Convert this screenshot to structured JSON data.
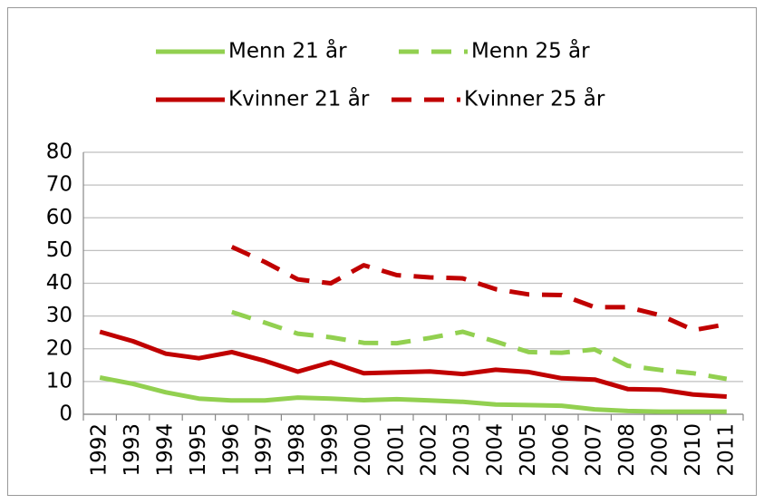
{
  "chart_data": {
    "type": "line",
    "categories": [
      "1992",
      "1993",
      "1994",
      "1995",
      "1996",
      "1997",
      "1998",
      "1999",
      "2000",
      "2001",
      "2002",
      "2003",
      "2004",
      "2005",
      "2006",
      "2007",
      "2008",
      "2009",
      "2010",
      "2011"
    ],
    "series": [
      {
        "name": "Menn 21 år",
        "color": "#92d050",
        "style": "solid",
        "values": [
          11.2,
          9.3,
          6.7,
          4.8,
          4.2,
          4.2,
          5.1,
          4.8,
          4.3,
          4.6,
          4.2,
          3.8,
          3.0,
          2.8,
          2.6,
          1.5,
          1.0,
          0.8,
          0.8,
          0.8
        ]
      },
      {
        "name": "Menn 25 år",
        "color": "#92d050",
        "style": "dashed",
        "values": [
          null,
          null,
          null,
          null,
          31.2,
          28.0,
          24.6,
          23.5,
          21.8,
          21.7,
          23.3,
          25.2,
          22.2,
          19.0,
          18.8,
          19.8,
          14.8,
          13.5,
          12.5,
          10.8
        ]
      },
      {
        "name": "Kvinner 21 år",
        "color": "#c00000",
        "style": "solid",
        "values": [
          25.2,
          22.3,
          18.5,
          17.1,
          19.0,
          16.3,
          13.0,
          15.9,
          12.5,
          12.8,
          13.1,
          12.3,
          13.6,
          12.9,
          11.0,
          10.6,
          7.7,
          7.5,
          6.0,
          5.4
        ]
      },
      {
        "name": "Kvinner 25 år",
        "color": "#c00000",
        "style": "dashed",
        "values": [
          null,
          null,
          null,
          null,
          51.1,
          46.5,
          41.2,
          40.0,
          45.5,
          42.5,
          41.8,
          41.5,
          38.2,
          36.6,
          36.4,
          32.7,
          32.7,
          30.2,
          25.7,
          27.5
        ]
      }
    ],
    "ylim": [
      0,
      80
    ],
    "yticks": [
      0,
      10,
      20,
      30,
      40,
      50,
      60,
      70,
      80
    ],
    "grid": true
  }
}
